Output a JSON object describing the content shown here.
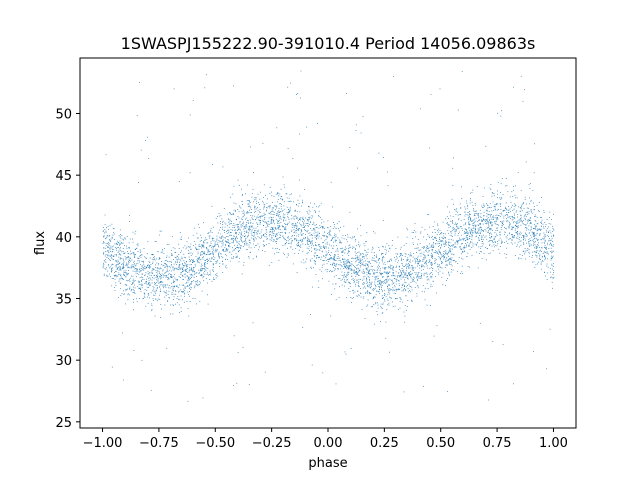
{
  "chart_data": {
    "type": "scatter",
    "title": "1SWASPJ155222.90-391010.4 Period 14056.09863s",
    "xlabel": "phase",
    "ylabel": "flux",
    "xlim": [
      -1.1,
      1.1
    ],
    "ylim": [
      24.5,
      54.5
    ],
    "xticks": [
      -1.0,
      -0.75,
      -0.5,
      -0.25,
      0.0,
      0.25,
      0.5,
      0.75,
      1.0
    ],
    "xtick_labels": [
      "−1.00",
      "−0.75",
      "−0.50",
      "−0.25",
      "0.00",
      "0.25",
      "0.50",
      "0.75",
      "1.00"
    ],
    "yticks": [
      25,
      30,
      35,
      40,
      45,
      50
    ],
    "ytick_labels": [
      "25",
      "30",
      "35",
      "40",
      "45",
      "50"
    ],
    "grid": false,
    "point_color": "#1f77b4",
    "series": [
      {
        "name": "",
        "model": "sinusoid",
        "x_range": [
          -1.0,
          1.0
        ],
        "mean_flux": 39.0,
        "amplitude": 2.3,
        "cycles_per_phase": 1,
        "max_phase": -0.25,
        "min_phase": 0.25,
        "scatter_sigma": 1.3,
        "outlier_band_high": [
          44,
          53.5
        ],
        "outlier_band_low": [
          26.5,
          34
        ],
        "sample_points": [
          {
            "x": -1.0,
            "y": 39.0
          },
          {
            "x": -0.75,
            "y": 36.7
          },
          {
            "x": -0.5,
            "y": 39.0
          },
          {
            "x": -0.25,
            "y": 41.3
          },
          {
            "x": 0.0,
            "y": 39.0
          },
          {
            "x": 0.25,
            "y": 36.7
          },
          {
            "x": 0.5,
            "y": 39.0
          },
          {
            "x": 0.75,
            "y": 41.3
          },
          {
            "x": 1.0,
            "y": 39.0
          }
        ]
      }
    ]
  }
}
